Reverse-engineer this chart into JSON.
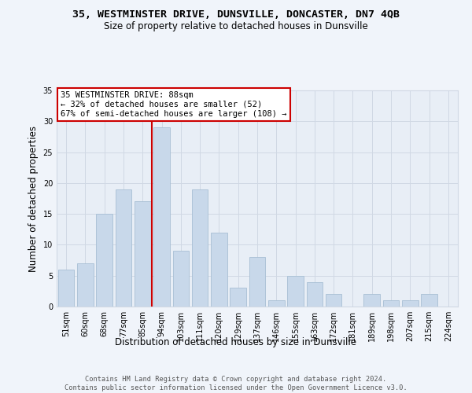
{
  "title1": "35, WESTMINSTER DRIVE, DUNSVILLE, DONCASTER, DN7 4QB",
  "title2": "Size of property relative to detached houses in Dunsville",
  "xlabel": "Distribution of detached houses by size in Dunsville",
  "ylabel": "Number of detached properties",
  "categories": [
    "51sqm",
    "60sqm",
    "68sqm",
    "77sqm",
    "85sqm",
    "94sqm",
    "103sqm",
    "111sqm",
    "120sqm",
    "129sqm",
    "137sqm",
    "146sqm",
    "155sqm",
    "163sqm",
    "172sqm",
    "181sqm",
    "189sqm",
    "198sqm",
    "207sqm",
    "215sqm",
    "224sqm"
  ],
  "values": [
    6,
    7,
    15,
    19,
    17,
    29,
    9,
    19,
    12,
    3,
    8,
    1,
    5,
    4,
    2,
    0,
    2,
    1,
    1,
    2,
    0
  ],
  "bar_color": "#c8d8ea",
  "bar_edgecolor": "#a8bfd4",
  "vline_x": 4.5,
  "vline_color": "#cc0000",
  "annotation_text": "35 WESTMINSTER DRIVE: 88sqm\n← 32% of detached houses are smaller (52)\n67% of semi-detached houses are larger (108) →",
  "annotation_box_facecolor": "#ffffff",
  "annotation_box_edgecolor": "#cc0000",
  "ylim": [
    0,
    35
  ],
  "yticks": [
    0,
    5,
    10,
    15,
    20,
    25,
    30,
    35
  ],
  "grid_color": "#d0d8e4",
  "plot_bg_color": "#e8eef6",
  "fig_bg_color": "#f0f4fa",
  "footer": "Contains HM Land Registry data © Crown copyright and database right 2024.\nContains public sector information licensed under the Open Government Licence v3.0."
}
